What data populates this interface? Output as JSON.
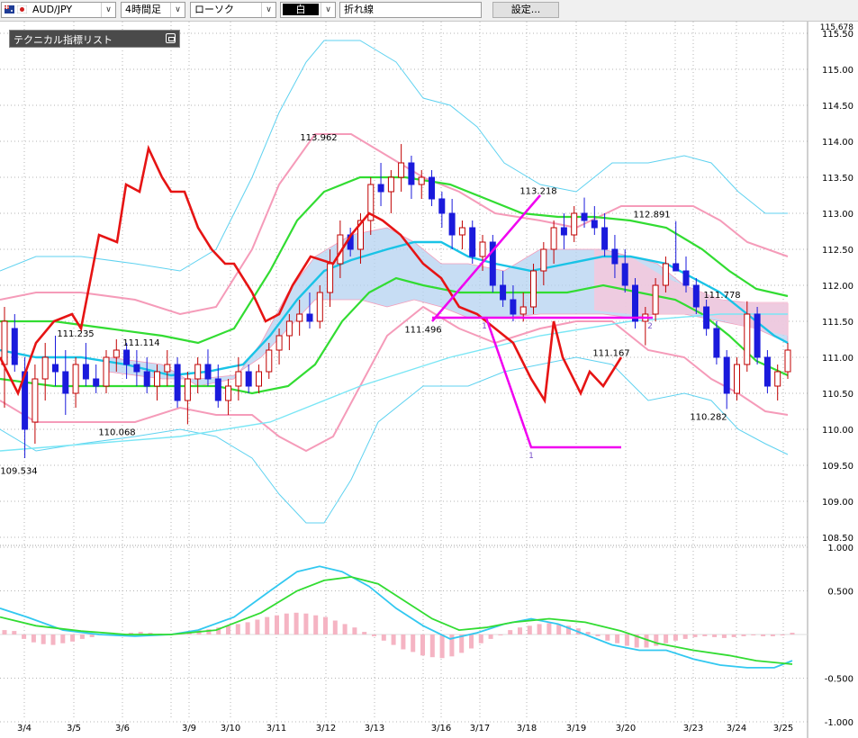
{
  "toolbar": {
    "pair": "AUD/JPY",
    "timeframe": "4時間足",
    "chart_type": "ローソク",
    "chart_style": "白",
    "draw_tool": "折れ線",
    "settings_label": "設定..."
  },
  "indicator_panel": {
    "title": "テクニカル指標リスト"
  },
  "colors": {
    "up_candle": "#c00000",
    "down_candle": "#1a1adc",
    "ma_short": "#19c3e6",
    "bands_inner": "#f59bb9",
    "bands_outer": "#5fd2f0",
    "middle": "#32dc32",
    "line_tool": "#e61414",
    "fib_tool": "#f000f0",
    "kumo": "#b4d2f0",
    "kumo_down": "#f5c8dc"
  },
  "chart_data": [
    {
      "type": "candlestick",
      "y_ticks": [
        "115.50",
        "115.00",
        "114.50",
        "114.00",
        "113.50",
        "113.00",
        "112.50",
        "112.00",
        "111.50",
        "111.00",
        "110.50",
        "110.00",
        "109.50",
        "109.00",
        "108.50"
      ],
      "x_ticks": [
        "3/4",
        "3/5",
        "3/6",
        "3/9",
        "3/10",
        "3/11",
        "3/12",
        "3/13",
        "3/16",
        "3/17",
        "3/18",
        "3/19",
        "3/20",
        "3/23",
        "3/24",
        "3/25"
      ],
      "ylim": [
        108.3,
        115.86
      ],
      "annotations": [
        {
          "text": "113.962",
          "x": 354,
          "price": 113.962
        },
        {
          "text": "113.218",
          "x": 598,
          "price": 113.218
        },
        {
          "text": "112.891",
          "x": 724,
          "price": 112.891
        },
        {
          "text": "111.778",
          "x": 802,
          "price": 111.778
        },
        {
          "text": "111.235",
          "x": 84,
          "price": 111.235
        },
        {
          "text": "111.114",
          "x": 157,
          "price": 111.114
        },
        {
          "text": "111.496",
          "x": 470,
          "price": 111.496
        },
        {
          "text": "111.167",
          "x": 679,
          "price": 111.167
        },
        {
          "text": "110.068",
          "x": 130,
          "price": 110.068
        },
        {
          "text": "110.282",
          "x": 787,
          "price": 110.282
        },
        {
          "text": "109.534",
          "x": 21,
          "price": 109.534
        }
      ],
      "tool_labels": [
        "1",
        "2",
        "1"
      ],
      "candles": [
        {
          "o": 110.9,
          "h": 111.7,
          "l": 110.3,
          "c": 111.5
        },
        {
          "o": 111.4,
          "h": 111.6,
          "l": 110.8,
          "c": 110.9
        },
        {
          "o": 110.8,
          "h": 111.0,
          "l": 109.6,
          "c": 110.0
        },
        {
          "o": 110.1,
          "h": 110.9,
          "l": 109.8,
          "c": 110.7
        },
        {
          "o": 110.7,
          "h": 111.2,
          "l": 110.4,
          "c": 111.0
        },
        {
          "o": 110.9,
          "h": 111.3,
          "l": 110.6,
          "c": 110.8
        },
        {
          "o": 110.8,
          "h": 111.1,
          "l": 110.2,
          "c": 110.5
        },
        {
          "o": 110.5,
          "h": 111.0,
          "l": 110.3,
          "c": 110.9
        },
        {
          "o": 110.9,
          "h": 111.2,
          "l": 110.6,
          "c": 110.7
        },
        {
          "o": 110.7,
          "h": 110.9,
          "l": 110.5,
          "c": 110.6
        },
        {
          "o": 110.6,
          "h": 111.1,
          "l": 110.5,
          "c": 111.0
        },
        {
          "o": 111.0,
          "h": 111.25,
          "l": 110.8,
          "c": 111.1
        },
        {
          "o": 111.1,
          "h": 111.2,
          "l": 110.7,
          "c": 110.9
        },
        {
          "o": 110.9,
          "h": 111.1,
          "l": 110.6,
          "c": 110.8
        },
        {
          "o": 110.8,
          "h": 111.0,
          "l": 110.5,
          "c": 110.6
        },
        {
          "o": 110.6,
          "h": 110.9,
          "l": 110.4,
          "c": 110.8
        },
        {
          "o": 110.8,
          "h": 111.1,
          "l": 110.6,
          "c": 110.9
        },
        {
          "o": 110.9,
          "h": 111.0,
          "l": 110.3,
          "c": 110.4
        },
        {
          "o": 110.4,
          "h": 110.8,
          "l": 110.07,
          "c": 110.7
        },
        {
          "o": 110.7,
          "h": 111.0,
          "l": 110.5,
          "c": 110.9
        },
        {
          "o": 110.9,
          "h": 111.11,
          "l": 110.6,
          "c": 110.7
        },
        {
          "o": 110.7,
          "h": 110.9,
          "l": 110.3,
          "c": 110.4
        },
        {
          "o": 110.4,
          "h": 110.7,
          "l": 110.2,
          "c": 110.6
        },
        {
          "o": 110.6,
          "h": 111.0,
          "l": 110.4,
          "c": 110.8
        },
        {
          "o": 110.8,
          "h": 110.9,
          "l": 110.5,
          "c": 110.6
        },
        {
          "o": 110.6,
          "h": 110.9,
          "l": 110.5,
          "c": 110.8
        },
        {
          "o": 110.8,
          "h": 111.2,
          "l": 110.7,
          "c": 111.1
        },
        {
          "o": 111.1,
          "h": 111.4,
          "l": 110.9,
          "c": 111.3
        },
        {
          "o": 111.3,
          "h": 111.6,
          "l": 111.1,
          "c": 111.5
        },
        {
          "o": 111.5,
          "h": 111.8,
          "l": 111.3,
          "c": 111.6
        },
        {
          "o": 111.6,
          "h": 111.9,
          "l": 111.4,
          "c": 111.5
        },
        {
          "o": 111.5,
          "h": 112.0,
          "l": 111.4,
          "c": 111.9
        },
        {
          "o": 111.9,
          "h": 112.5,
          "l": 111.7,
          "c": 112.3
        },
        {
          "o": 112.3,
          "h": 112.9,
          "l": 112.1,
          "c": 112.7
        },
        {
          "o": 112.7,
          "h": 112.8,
          "l": 112.4,
          "c": 112.5
        },
        {
          "o": 112.5,
          "h": 113.0,
          "l": 112.3,
          "c": 112.9
        },
        {
          "o": 112.9,
          "h": 113.5,
          "l": 112.7,
          "c": 113.4
        },
        {
          "o": 113.4,
          "h": 113.7,
          "l": 113.1,
          "c": 113.3
        },
        {
          "o": 113.3,
          "h": 113.6,
          "l": 113.0,
          "c": 113.5
        },
        {
          "o": 113.5,
          "h": 113.962,
          "l": 113.3,
          "c": 113.7
        },
        {
          "o": 113.7,
          "h": 113.8,
          "l": 113.2,
          "c": 113.4
        },
        {
          "o": 113.4,
          "h": 113.6,
          "l": 113.2,
          "c": 113.5
        },
        {
          "o": 113.5,
          "h": 113.6,
          "l": 113.1,
          "c": 113.2
        },
        {
          "o": 113.2,
          "h": 113.3,
          "l": 112.8,
          "c": 113.0
        },
        {
          "o": 113.0,
          "h": 113.2,
          "l": 112.5,
          "c": 112.7
        },
        {
          "o": 112.7,
          "h": 112.9,
          "l": 112.5,
          "c": 112.8
        },
        {
          "o": 112.8,
          "h": 112.9,
          "l": 112.3,
          "c": 112.4
        },
        {
          "o": 112.4,
          "h": 112.7,
          "l": 112.2,
          "c": 112.6
        },
        {
          "o": 112.6,
          "h": 112.7,
          "l": 111.9,
          "c": 112.0
        },
        {
          "o": 112.0,
          "h": 112.2,
          "l": 111.7,
          "c": 111.8
        },
        {
          "o": 111.8,
          "h": 112.0,
          "l": 111.5,
          "c": 111.6
        },
        {
          "o": 111.6,
          "h": 111.9,
          "l": 111.496,
          "c": 111.7
        },
        {
          "o": 111.7,
          "h": 112.3,
          "l": 111.6,
          "c": 112.2
        },
        {
          "o": 112.2,
          "h": 112.6,
          "l": 112.0,
          "c": 112.5
        },
        {
          "o": 112.5,
          "h": 112.9,
          "l": 112.3,
          "c": 112.8
        },
        {
          "o": 112.8,
          "h": 113.0,
          "l": 112.5,
          "c": 112.7
        },
        {
          "o": 112.7,
          "h": 113.1,
          "l": 112.6,
          "c": 113.0
        },
        {
          "o": 113.0,
          "h": 113.218,
          "l": 112.8,
          "c": 112.9
        },
        {
          "o": 112.9,
          "h": 113.1,
          "l": 112.7,
          "c": 112.8
        },
        {
          "o": 112.8,
          "h": 113.0,
          "l": 112.4,
          "c": 112.5
        },
        {
          "o": 112.5,
          "h": 112.7,
          "l": 112.1,
          "c": 112.3
        },
        {
          "o": 112.3,
          "h": 112.5,
          "l": 111.9,
          "c": 112.0
        },
        {
          "o": 112.0,
          "h": 112.1,
          "l": 111.4,
          "c": 111.5
        },
        {
          "o": 111.5,
          "h": 111.7,
          "l": 111.167,
          "c": 111.6
        },
        {
          "o": 111.6,
          "h": 112.1,
          "l": 111.5,
          "c": 112.0
        },
        {
          "o": 112.0,
          "h": 112.4,
          "l": 111.9,
          "c": 112.3
        },
        {
          "o": 112.3,
          "h": 112.891,
          "l": 112.2,
          "c": 112.2
        },
        {
          "o": 112.2,
          "h": 112.4,
          "l": 111.9,
          "c": 112.0
        },
        {
          "o": 112.0,
          "h": 112.1,
          "l": 111.6,
          "c": 111.7
        },
        {
          "o": 111.7,
          "h": 111.8,
          "l": 111.3,
          "c": 111.4
        },
        {
          "o": 111.4,
          "h": 111.5,
          "l": 110.9,
          "c": 111.0
        },
        {
          "o": 111.0,
          "h": 111.1,
          "l": 110.282,
          "c": 110.5
        },
        {
          "o": 110.5,
          "h": 111.0,
          "l": 110.4,
          "c": 110.9
        },
        {
          "o": 110.9,
          "h": 111.778,
          "l": 110.8,
          "c": 111.6
        },
        {
          "o": 111.6,
          "h": 111.7,
          "l": 110.9,
          "c": 111.0
        },
        {
          "o": 111.0,
          "h": 111.1,
          "l": 110.5,
          "c": 110.6
        },
        {
          "o": 110.6,
          "h": 110.9,
          "l": 110.4,
          "c": 110.8
        },
        {
          "o": 110.8,
          "h": 111.2,
          "l": 110.7,
          "c": 111.1
        }
      ]
    },
    {
      "type": "line",
      "y_ticks": [
        "1.000",
        "0.500",
        "-0.500",
        "-1.000"
      ],
      "ylim": [
        -1.0,
        1.0
      ]
    }
  ]
}
